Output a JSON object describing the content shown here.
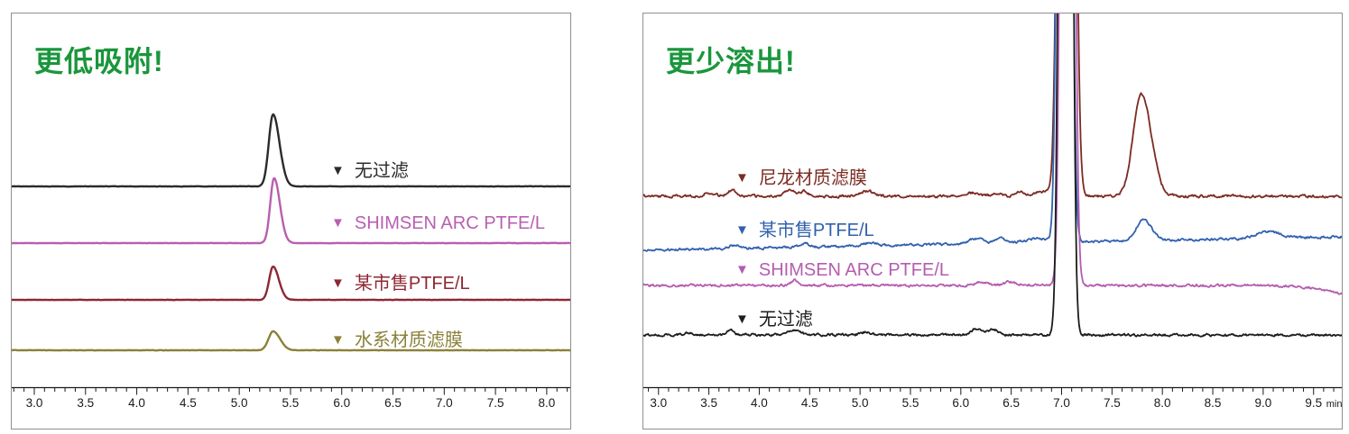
{
  "page": {
    "background": "#ffffff"
  },
  "chart_data": [
    {
      "type": "line",
      "subtype": "chromatogram",
      "panel": "left",
      "title": "更低吸附!",
      "title_color": "#1a963c",
      "axis": {
        "x_min": 2.78,
        "x_max": 8.23,
        "major_step": 0.5,
        "minor_step": 0.1,
        "tick_labels": [
          "3.0",
          "3.5",
          "4.0",
          "4.5",
          "5.0",
          "5.5",
          "6.0",
          "6.5",
          "7.0",
          "7.5",
          "8.0"
        ],
        "unit": "",
        "axis_color": "#1a1a1a",
        "grid": false
      },
      "legend_position": "right-of-each-trace",
      "main_peak_rt_min": 5.33,
      "traces": [
        {
          "label": "无过滤",
          "marker": "▼",
          "color": "#2b2b2b",
          "baseline": 192,
          "noise": 0.15,
          "drift": 0,
          "seed": 3,
          "peaks": [
            [
              5.33,
              80,
              0.042,
              1.5
            ]
          ]
        },
        {
          "label": "SHIMSEN ARC PTFE/L",
          "marker": "▼",
          "color": "#b85fb0",
          "baseline": 255,
          "noise": 0.15,
          "drift": 0,
          "seed": 5,
          "peaks": [
            [
              5.34,
              72,
              0.038,
              1.5
            ]
          ]
        },
        {
          "label": "某市售PTFE/L",
          "marker": "▼",
          "color": "#8e2733",
          "baseline": 318,
          "noise": 0.15,
          "drift": 0,
          "seed": 9,
          "peaks": [
            [
              5.33,
              37,
              0.038,
              1.5
            ]
          ]
        },
        {
          "label": "水系材质滤膜",
          "marker": "▼",
          "color": "#8b8139",
          "baseline": 374,
          "noise": 0.15,
          "drift": 0,
          "seed": 13,
          "peaks": [
            [
              5.33,
              21,
              0.045,
              1.5
            ]
          ]
        }
      ]
    },
    {
      "type": "line",
      "subtype": "chromatogram",
      "panel": "right",
      "title": "更少溶出!",
      "title_color": "#1a963c",
      "axis": {
        "x_min": 2.85,
        "x_max": 9.78,
        "major_step": 0.5,
        "minor_step": 0.1,
        "tick_labels": [
          "3.0",
          "3.5",
          "4.0",
          "4.5",
          "5.0",
          "5.5",
          "6.0",
          "6.5",
          "7.0",
          "7.5",
          "8.0",
          "8.5",
          "9.0",
          "9.5"
        ],
        "unit": "min",
        "axis_color": "#1a1a1a",
        "grid": false
      },
      "legend_position": "above-each-trace",
      "main_peak_rt_min": 7.04,
      "secondary_peak_rt_min": 7.8,
      "traces": [
        {
          "label": "尼龙材质滤膜",
          "marker": "▼",
          "color": "#7c2b22",
          "baseline": 203,
          "noise": 1.1,
          "drift": 0,
          "seed": 7,
          "peaks": [
            [
              7.05,
              3000,
              0.05,
              1
            ],
            [
              7.79,
              114,
              0.08,
              1.25
            ],
            [
              3.5,
              4,
              0.05,
              1
            ],
            [
              3.73,
              7,
              0.05,
              1
            ],
            [
              4.3,
              8,
              0.05,
              1
            ],
            [
              4.45,
              6,
              0.04,
              1
            ],
            [
              5.07,
              6,
              0.06,
              1
            ],
            [
              6.1,
              4,
              0.07,
              1
            ],
            [
              6.35,
              3,
              0.05,
              1
            ],
            [
              6.6,
              4,
              0.05,
              1
            ],
            [
              6.8,
              5,
              0.08,
              1
            ]
          ]
        },
        {
          "label": "某市售PTFE/L",
          "marker": "▼",
          "color": "#3261ae",
          "baseline": 263,
          "noise": 1.0,
          "drift": -15,
          "seed": 11,
          "peaks": [
            [
              7.03,
              3000,
              0.042,
              1
            ],
            [
              7.81,
              23,
              0.068,
              1.2
            ],
            [
              9.05,
              7,
              0.12,
              1
            ],
            [
              3.75,
              4,
              0.05,
              1
            ],
            [
              4.45,
              4,
              0.05,
              1
            ],
            [
              5.1,
              4,
              0.06,
              1
            ],
            [
              6.15,
              6,
              0.07,
              1
            ],
            [
              6.4,
              5,
              0.06,
              1
            ],
            [
              6.75,
              5,
              0.1,
              1
            ]
          ]
        },
        {
          "label": "SHIMSEN ARC PTFE/L",
          "marker": "▼",
          "color": "#b55cb0",
          "baseline": 302,
          "noise": 1.0,
          "drift": 0,
          "seed": 23,
          "peaks": [
            [
              7.06,
              3000,
              0.041,
              1
            ],
            [
              4.35,
              6,
              0.03,
              1
            ],
            [
              6.2,
              4,
              0.06,
              1
            ],
            [
              6.5,
              4,
              0.06,
              1
            ],
            [
              10.05,
              -14,
              0.32,
              1
            ]
          ]
        },
        {
          "label": "无过滤",
          "marker": "▼",
          "color": "#1c1c1c",
          "baseline": 357,
          "noise": 1.0,
          "drift": 0,
          "seed": 31,
          "peaks": [
            [
              7.04,
              3000,
              0.04,
              1
            ],
            [
              3.3,
              3,
              0.04,
              1
            ],
            [
              3.72,
              6,
              0.03,
              1
            ],
            [
              4.35,
              5,
              0.06,
              1
            ],
            [
              5.05,
              3,
              0.05,
              1
            ],
            [
              6.15,
              7,
              0.05,
              1
            ],
            [
              6.32,
              6,
              0.05,
              1
            ]
          ]
        }
      ]
    }
  ]
}
